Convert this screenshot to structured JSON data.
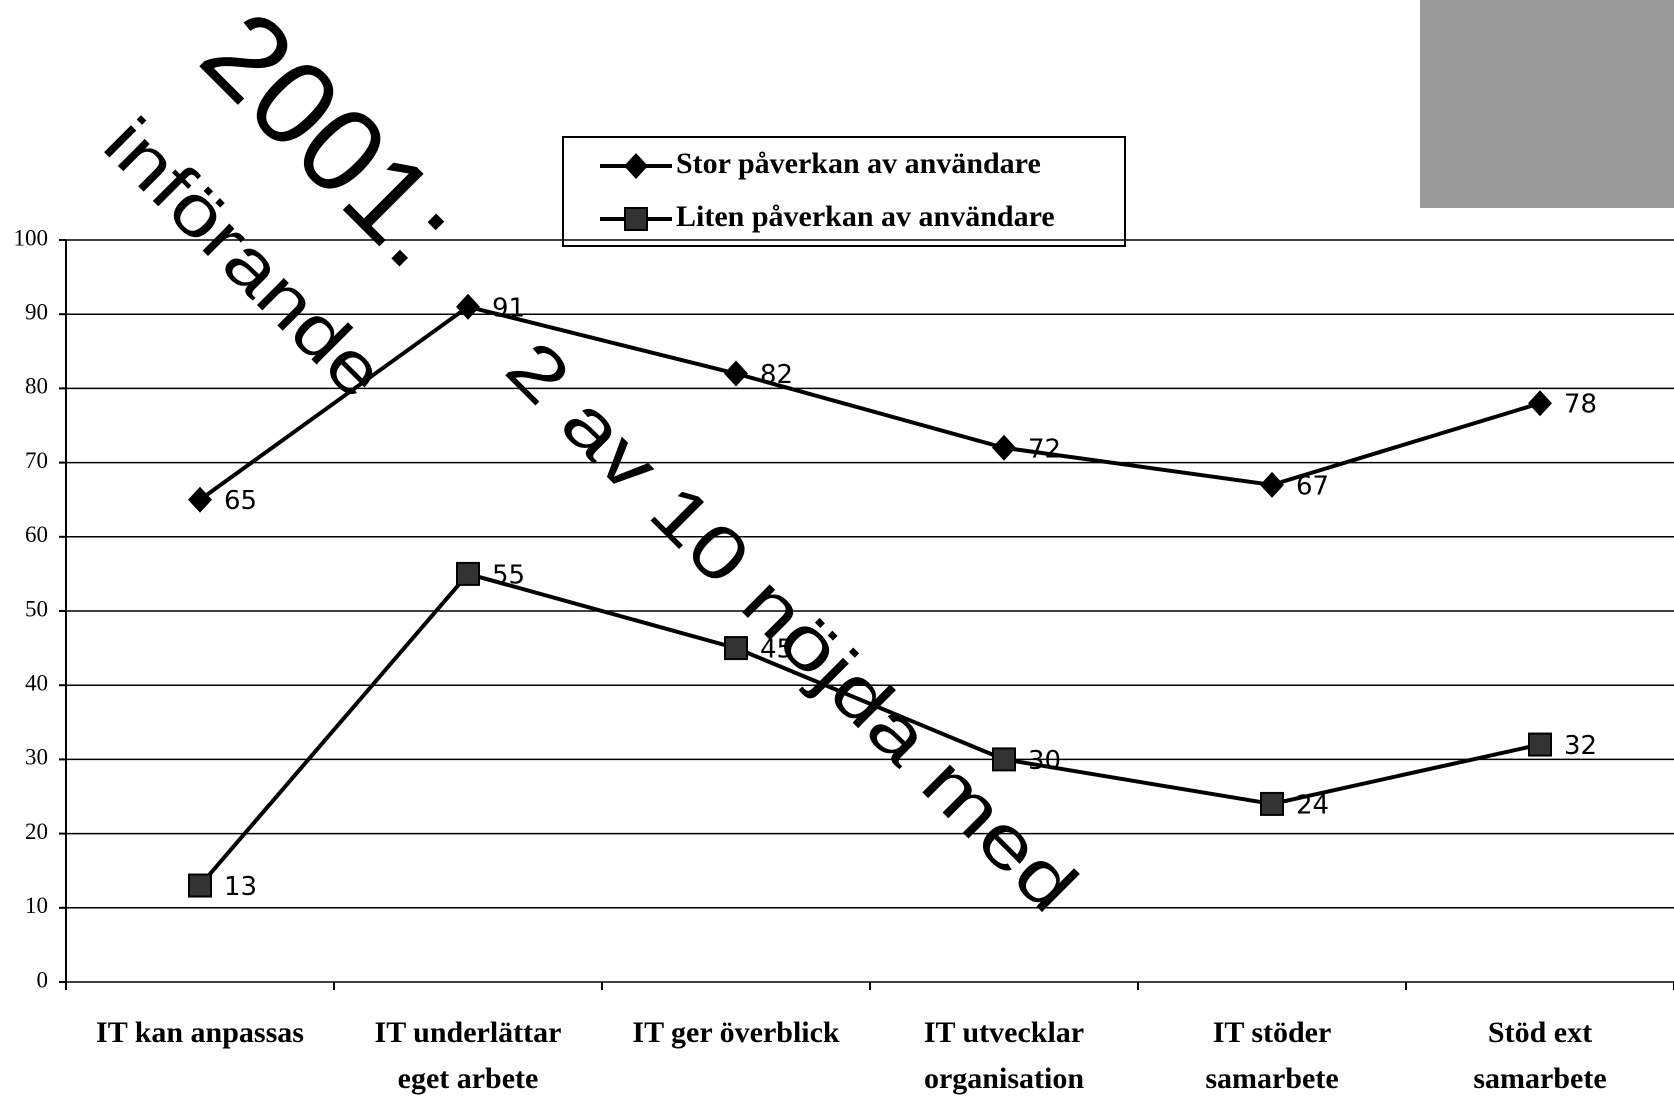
{
  "chart_data": {
    "type": "line",
    "annotations": [
      "2001:",
      "införande",
      "2 av 10 nöjda med"
    ],
    "categories": [
      "IT kan anpassas",
      "IT underlättar\neget arbete",
      "IT ger överblick",
      "IT utvecklar\norganisation",
      "IT stöder\nsamarbete",
      "Stöd ext\nsamarbete"
    ],
    "series": [
      {
        "name": "Stor påverkan av användare",
        "color": "#000000",
        "marker": "diamond",
        "values": [
          65,
          91,
          82,
          72,
          67,
          78
        ]
      },
      {
        "name": "Liten påverkan av användare",
        "color": "#000000",
        "marker": "square",
        "marker_color": "#333333",
        "values": [
          13,
          55,
          45,
          30,
          24,
          32
        ]
      }
    ],
    "ylim": [
      0,
      100
    ],
    "yticks": [
      0,
      10,
      20,
      30,
      40,
      50,
      60,
      70,
      80,
      90,
      100
    ],
    "grid": true
  }
}
